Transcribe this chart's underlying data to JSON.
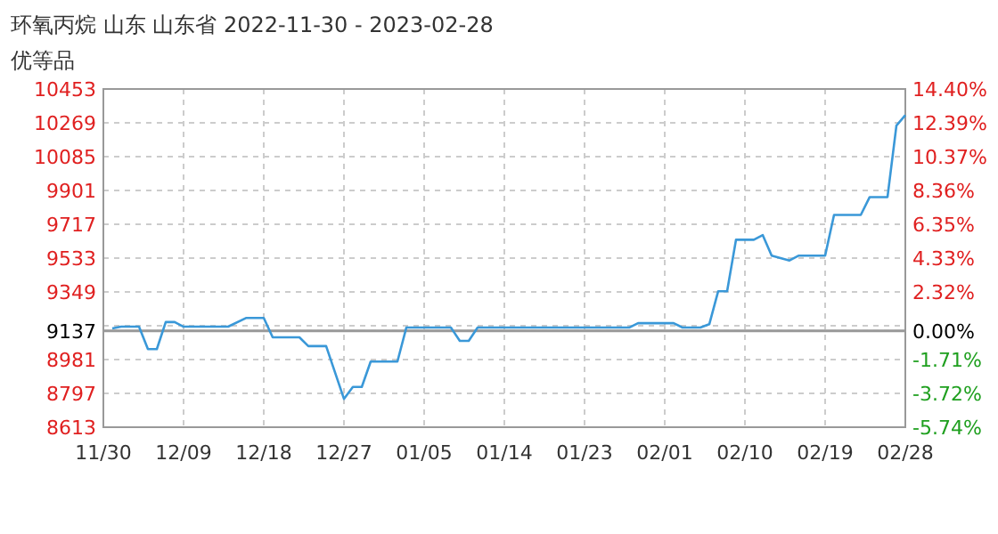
{
  "chart_data": {
    "type": "line",
    "title": "环氧丙烷 山东 山东省 2022-11-30 - 2023-02-28",
    "subtitle": "优等品",
    "series": [
      {
        "color": "#3a98d8",
        "x": [
          "2022-12-01",
          "2022-12-02",
          "2022-12-04",
          "2022-12-05",
          "2022-12-06",
          "2022-12-07",
          "2022-12-08",
          "2022-12-09",
          "2022-12-14",
          "2022-12-16",
          "2022-12-18",
          "2022-12-19",
          "2022-12-22",
          "2022-12-23",
          "2022-12-25",
          "2022-12-27",
          "2022-12-28",
          "2022-12-29",
          "2022-12-30",
          "2023-01-02",
          "2023-01-03",
          "2023-01-08",
          "2023-01-09",
          "2023-01-10",
          "2023-01-11",
          "2023-01-28",
          "2023-01-29",
          "2023-02-02",
          "2023-02-03",
          "2023-02-05",
          "2023-02-06",
          "2023-02-07",
          "2023-02-08",
          "2023-02-09",
          "2023-02-11",
          "2023-02-12",
          "2023-02-13",
          "2023-02-15",
          "2023-02-16",
          "2023-02-19",
          "2023-02-20",
          "2023-02-23",
          "2023-02-24",
          "2023-02-26",
          "2023-02-27",
          "2023-02-28"
        ],
        "values": [
          9150,
          9160,
          9160,
          9038,
          9038,
          9185,
          9185,
          9160,
          9160,
          9207,
          9207,
          9102,
          9102,
          9054,
          9054,
          8767,
          8832,
          8832,
          8970,
          8970,
          9155,
          9155,
          9083,
          9083,
          9155,
          9155,
          9179,
          9179,
          9155,
          9155,
          9173,
          9353,
          9353,
          9633,
          9633,
          9658,
          9546,
          9520,
          9546,
          9546,
          9768,
          9768,
          9865,
          9865,
          10254,
          10311
        ]
      }
    ],
    "xlim": [
      "2022-11-30",
      "2023-02-28"
    ],
    "xticks": [
      {
        "value": "2022-11-30",
        "label": "11/30"
      },
      {
        "value": "2022-12-09",
        "label": "12/09"
      },
      {
        "value": "2022-12-18",
        "label": "12/18"
      },
      {
        "value": "2022-12-27",
        "label": "12/27"
      },
      {
        "value": "2023-01-05",
        "label": "01/05"
      },
      {
        "value": "2023-01-14",
        "label": "01/14"
      },
      {
        "value": "2023-01-23",
        "label": "01/23"
      },
      {
        "value": "2023-02-01",
        "label": "02/01"
      },
      {
        "value": "2023-02-10",
        "label": "02/10"
      },
      {
        "value": "2023-02-19",
        "label": "02/19"
      },
      {
        "value": "2023-02-28",
        "label": "02/28"
      }
    ],
    "ylim": [
      8613,
      10453
    ],
    "yticks": [
      8613,
      8797,
      8981,
      9137,
      {
        "value": 9165,
        "label": null
      },
      9349,
      9533,
      9717,
      9901,
      10085,
      10269,
      10453
    ],
    "y2lim": [
      -5.74,
      14.4
    ],
    "y2ticks": [
      {
        "value": -5.74,
        "label": "-5.74%"
      },
      {
        "value": -3.72,
        "label": "-3.72%"
      },
      {
        "value": -1.71,
        "label": "-1.71%"
      },
      {
        "value": 0,
        "label": "0.00%"
      },
      {
        "value": 2.32,
        "label": "2.32%"
      },
      {
        "value": 4.33,
        "label": "4.33%"
      },
      {
        "value": 6.35,
        "label": "6.35%"
      },
      {
        "value": 8.36,
        "label": "8.36%"
      },
      {
        "value": 10.37,
        "label": "10.37%"
      },
      {
        "value": 12.39,
        "label": "12.39%"
      },
      {
        "value": 14.4,
        "label": "14.40%"
      }
    ],
    "ref_lines": [
      {
        "axis": "y",
        "value": 9137,
        "color": "#999999",
        "line_style": "solid"
      }
    ],
    "grid": true,
    "marker": "none",
    "line_style": "solid"
  }
}
